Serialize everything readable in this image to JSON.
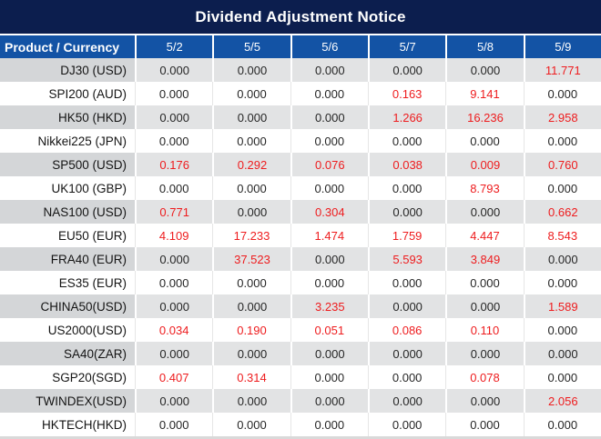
{
  "title": "Dividend Adjustment Notice",
  "colors": {
    "title_bar_bg": "#0c1e4e",
    "header_bg": "#1353a5",
    "header_text": "#ffffff",
    "row_stripe_product": "#d4d6d8",
    "row_stripe_values": "#e2e3e4",
    "value_text": "#262626",
    "highlight_red": "#ee1c1e"
  },
  "chart_data": {
    "type": "table",
    "title": "Dividend Adjustment Notice",
    "columns": [
      "Product / Currency",
      "5/2",
      "5/5",
      "5/6",
      "5/7",
      "5/8",
      "5/9"
    ],
    "rows": [
      {
        "product": "DJ30 (USD)",
        "values": [
          "0.000",
          "0.000",
          "0.000",
          "0.000",
          "0.000",
          "11.771"
        ],
        "red": [
          false,
          false,
          false,
          false,
          false,
          true
        ]
      },
      {
        "product": "SPI200 (AUD)",
        "values": [
          "0.000",
          "0.000",
          "0.000",
          "0.163",
          "9.141",
          "0.000"
        ],
        "red": [
          false,
          false,
          false,
          true,
          true,
          false
        ]
      },
      {
        "product": "HK50 (HKD)",
        "values": [
          "0.000",
          "0.000",
          "0.000",
          "1.266",
          "16.236",
          "2.958"
        ],
        "red": [
          false,
          false,
          false,
          true,
          true,
          true
        ]
      },
      {
        "product": "Nikkei225 (JPN)",
        "values": [
          "0.000",
          "0.000",
          "0.000",
          "0.000",
          "0.000",
          "0.000"
        ],
        "red": [
          false,
          false,
          false,
          false,
          false,
          false
        ]
      },
      {
        "product": "SP500 (USD)",
        "values": [
          "0.176",
          "0.292",
          "0.076",
          "0.038",
          "0.009",
          "0.760"
        ],
        "red": [
          true,
          true,
          true,
          true,
          true,
          true
        ]
      },
      {
        "product": "UK100 (GBP)",
        "values": [
          "0.000",
          "0.000",
          "0.000",
          "0.000",
          "8.793",
          "0.000"
        ],
        "red": [
          false,
          false,
          false,
          false,
          true,
          false
        ]
      },
      {
        "product": "NAS100 (USD)",
        "values": [
          "0.771",
          "0.000",
          "0.304",
          "0.000",
          "0.000",
          "0.662"
        ],
        "red": [
          true,
          false,
          true,
          false,
          false,
          true
        ]
      },
      {
        "product": "EU50 (EUR)",
        "values": [
          "4.109",
          "17.233",
          "1.474",
          "1.759",
          "4.447",
          "8.543"
        ],
        "red": [
          true,
          true,
          true,
          true,
          true,
          true
        ]
      },
      {
        "product": "FRA40 (EUR)",
        "values": [
          "0.000",
          "37.523",
          "0.000",
          "5.593",
          "3.849",
          "0.000"
        ],
        "red": [
          false,
          true,
          false,
          true,
          true,
          false
        ]
      },
      {
        "product": "ES35 (EUR)",
        "values": [
          "0.000",
          "0.000",
          "0.000",
          "0.000",
          "0.000",
          "0.000"
        ],
        "red": [
          false,
          false,
          false,
          false,
          false,
          false
        ]
      },
      {
        "product": "CHINA50(USD)",
        "values": [
          "0.000",
          "0.000",
          "3.235",
          "0.000",
          "0.000",
          "1.589"
        ],
        "red": [
          false,
          false,
          true,
          false,
          false,
          true
        ]
      },
      {
        "product": "US2000(USD)",
        "values": [
          "0.034",
          "0.190",
          "0.051",
          "0.086",
          "0.110",
          "0.000"
        ],
        "red": [
          true,
          true,
          true,
          true,
          true,
          false
        ]
      },
      {
        "product": "SA40(ZAR)",
        "values": [
          "0.000",
          "0.000",
          "0.000",
          "0.000",
          "0.000",
          "0.000"
        ],
        "red": [
          false,
          false,
          false,
          false,
          false,
          false
        ]
      },
      {
        "product": "SGP20(SGD)",
        "values": [
          "0.407",
          "0.314",
          "0.000",
          "0.000",
          "0.078",
          "0.000"
        ],
        "red": [
          true,
          true,
          false,
          false,
          true,
          false
        ]
      },
      {
        "product": "TWINDEX(USD)",
        "values": [
          "0.000",
          "0.000",
          "0.000",
          "0.000",
          "0.000",
          "2.056"
        ],
        "red": [
          false,
          false,
          false,
          false,
          false,
          true
        ]
      },
      {
        "product": "HKTECH(HKD)",
        "values": [
          "0.000",
          "0.000",
          "0.000",
          "0.000",
          "0.000",
          "0.000"
        ],
        "red": [
          false,
          false,
          false,
          false,
          false,
          false
        ]
      }
    ]
  }
}
